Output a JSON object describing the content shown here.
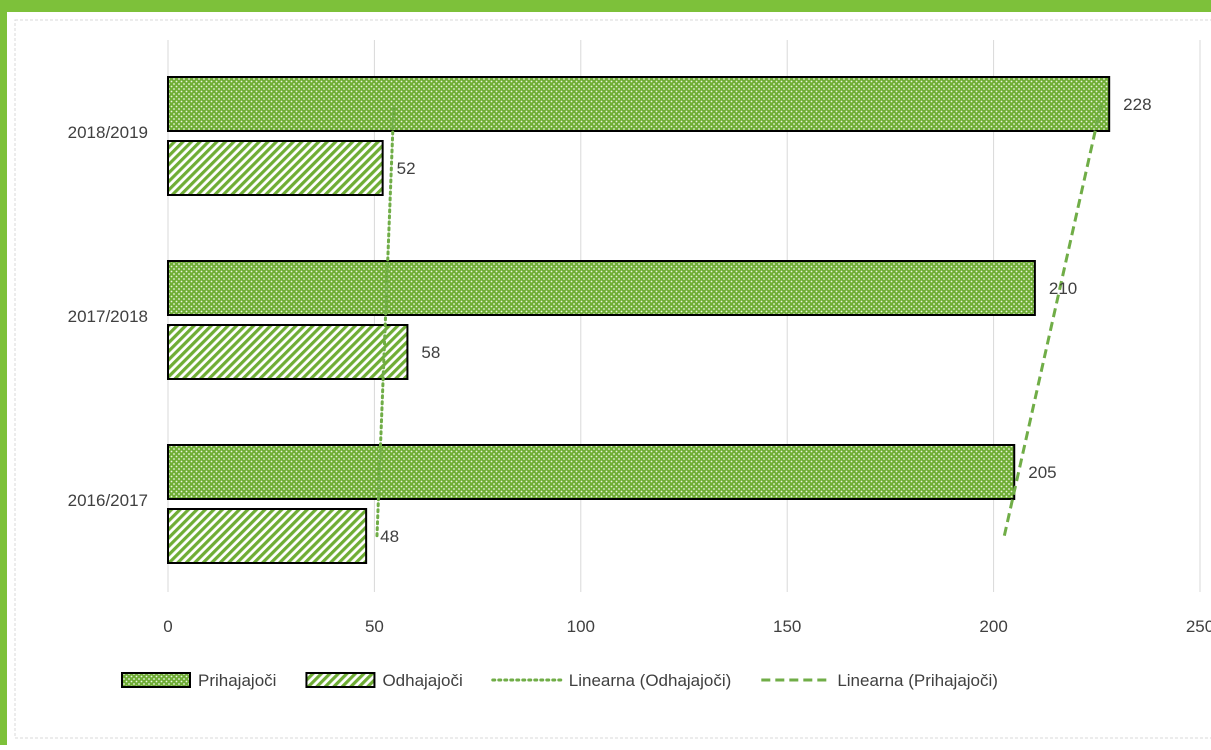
{
  "chart_data": {
    "type": "bar",
    "orientation": "horizontal",
    "categories": [
      "2016/2017",
      "2017/2018",
      "2018/2019"
    ],
    "series": [
      {
        "name": "Prihajajoči",
        "values": [
          205,
          210,
          228
        ],
        "pattern": "dots"
      },
      {
        "name": "Odhajajoči",
        "values": [
          48,
          58,
          52
        ],
        "pattern": "diagonal-stripes"
      }
    ],
    "trendlines": [
      {
        "name": "Linearna (Odhajajoči)",
        "of": "Odhajajoči",
        "style": "dotted"
      },
      {
        "name": "Linearna (Prihajajoči)",
        "of": "Prihajajoči",
        "style": "dashed"
      }
    ],
    "xlim": [
      0,
      250
    ],
    "xticks": [
      0,
      50,
      100,
      150,
      200,
      250
    ],
    "xtick_labels": [
      "0",
      "50",
      "100",
      "150",
      "200",
      "250"
    ],
    "grid": "vertical",
    "legend": "bottom",
    "data_labels": true
  },
  "colors": {
    "border": "#7DC13A",
    "bar_fill": "#6FAD35",
    "trend": "#70AD47",
    "grid": "#D9D9D9",
    "text": "#404040"
  }
}
